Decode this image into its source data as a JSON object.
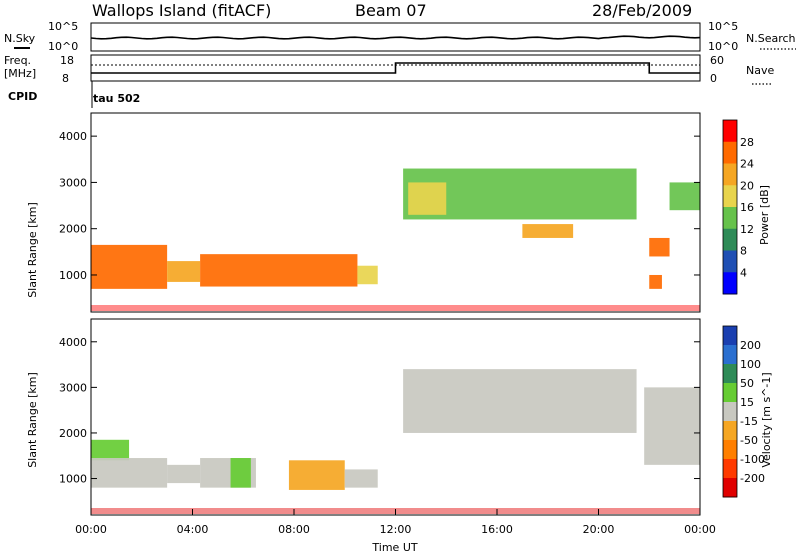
{
  "header": {
    "station": "Wallops Island (fitACF)",
    "beam": "Beam 07",
    "date": "28/Feb/2009"
  },
  "noise_panel": {
    "left_label": "N.Sky",
    "right_label": "N.Search",
    "left_ticks": [
      "10^5",
      "10^0"
    ],
    "right_ticks": [
      "10^5",
      "10^0"
    ]
  },
  "freq_panel": {
    "left_label_1": "Freq.",
    "left_label_2": "[MHz]",
    "left_ticks": [
      "18",
      "8"
    ],
    "right_label": "Nave",
    "right_ticks": [
      "60",
      "0"
    ],
    "cpid_label": "CPID",
    "cpid_value": "tau 502"
  },
  "chart_data": [
    {
      "type": "heatmap",
      "title": "",
      "xlabel": "Time UT",
      "ylabel": "Slant Range [km]",
      "x_ticks": [
        "00:00",
        "04:00",
        "08:00",
        "12:00",
        "16:00",
        "20:00",
        "00:00"
      ],
      "y_ticks": [
        "1000",
        "2000",
        "3000",
        "4000"
      ],
      "ylim": [
        200,
        4500
      ],
      "colorbar": {
        "label": "Power [dB]",
        "ticks": [
          "4",
          "8",
          "12",
          "16",
          "20",
          "24",
          "28"
        ],
        "colors": [
          "#0000ff",
          "#1f4fb4",
          "#2e8b57",
          "#66c24b",
          "#e8d44d",
          "#f5a623",
          "#ff6a00",
          "#ff0000"
        ]
      },
      "regions": [
        {
          "t0": 0.0,
          "t1": 3.0,
          "r0": 700,
          "r1": 1650,
          "level": 6
        },
        {
          "t0": 3.0,
          "t1": 4.3,
          "r0": 850,
          "r1": 1300,
          "level": 5
        },
        {
          "t0": 4.3,
          "t1": 10.5,
          "r0": 750,
          "r1": 1450,
          "level": 6
        },
        {
          "t0": 10.5,
          "t1": 11.3,
          "r0": 800,
          "r1": 1200,
          "level": 4
        },
        {
          "t0": 12.3,
          "t1": 21.5,
          "r0": 2200,
          "r1": 3300,
          "level": 3
        },
        {
          "t0": 12.5,
          "t1": 14.0,
          "r0": 2300,
          "r1": 3000,
          "level": 4
        },
        {
          "t0": 17.0,
          "t1": 19.0,
          "r0": 1800,
          "r1": 2100,
          "level": 5
        },
        {
          "t0": 22.0,
          "t1": 22.8,
          "r0": 1400,
          "r1": 1800,
          "level": 6
        },
        {
          "t0": 22.0,
          "t1": 22.5,
          "r0": 700,
          "r1": 1000,
          "level": 6
        },
        {
          "t0": 22.8,
          "t1": 24.0,
          "r0": 2400,
          "r1": 3000,
          "level": 3
        }
      ]
    },
    {
      "type": "heatmap",
      "title": "",
      "xlabel": "Time UT",
      "ylabel": "Slant Range [km]",
      "x_ticks": [
        "00:00",
        "04:00",
        "08:00",
        "12:00",
        "16:00",
        "20:00",
        "00:00"
      ],
      "y_ticks": [
        "1000",
        "2000",
        "3000",
        "4000"
      ],
      "ylim": [
        200,
        4500
      ],
      "colorbar": {
        "label": "Velocity [m s^-1]",
        "ticks": [
          "200",
          "100",
          "50",
          "15",
          "-15",
          "-50",
          "-100",
          "-200"
        ],
        "colors": [
          "#1a3fb0",
          "#2a6fd0",
          "#2e8b57",
          "#66cc33",
          "#c8c8c0",
          "#f5a623",
          "#ff7f00",
          "#ff3a00",
          "#e00000"
        ]
      },
      "regions": [
        {
          "t0": 0.0,
          "t1": 1.5,
          "r0": 1400,
          "r1": 1850,
          "level": 3
        },
        {
          "t0": 0.0,
          "t1": 3.0,
          "r0": 800,
          "r1": 1450,
          "level": 4
        },
        {
          "t0": 3.0,
          "t1": 4.3,
          "r0": 900,
          "r1": 1300,
          "level": 4
        },
        {
          "t0": 4.3,
          "t1": 6.5,
          "r0": 800,
          "r1": 1450,
          "level": 4
        },
        {
          "t0": 5.5,
          "t1": 6.3,
          "r0": 800,
          "r1": 1450,
          "level": 3
        },
        {
          "t0": 7.8,
          "t1": 10.0,
          "r0": 750,
          "r1": 1400,
          "level": 5
        },
        {
          "t0": 10.0,
          "t1": 11.3,
          "r0": 800,
          "r1": 1200,
          "level": 4
        },
        {
          "t0": 12.3,
          "t1": 21.5,
          "r0": 2000,
          "r1": 3400,
          "level": 4
        },
        {
          "t0": 21.8,
          "t1": 24.0,
          "r0": 1300,
          "r1": 3000,
          "level": 4
        }
      ]
    }
  ]
}
